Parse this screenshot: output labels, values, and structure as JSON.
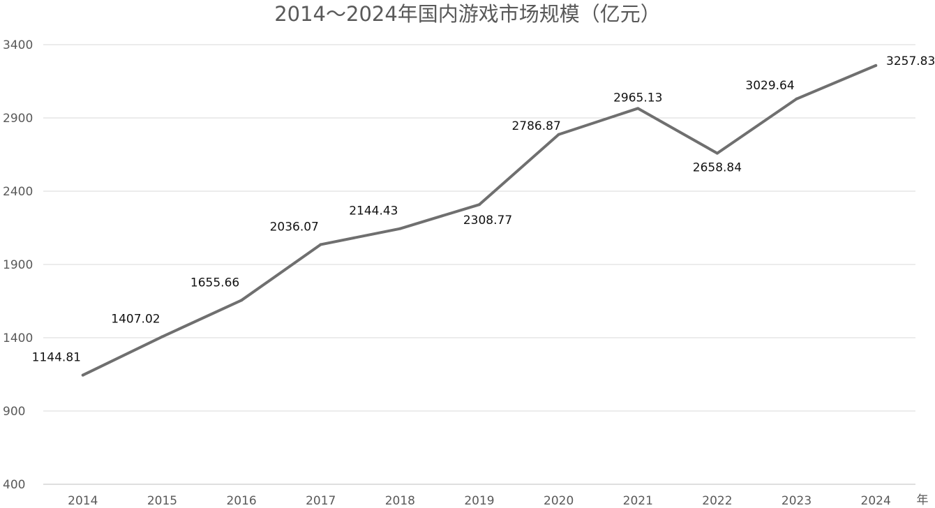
{
  "chart_data": {
    "type": "line",
    "title": "2014～2024年国内游戏市场规模（亿元）",
    "xlabel": "年",
    "ylabel": "",
    "categories": [
      "2014",
      "2015",
      "2016",
      "2017",
      "2018",
      "2019",
      "2020",
      "2021",
      "2022",
      "2023",
      "2024"
    ],
    "series": [
      {
        "values": [
          1144.81,
          1407.02,
          1655.66,
          2036.07,
          2144.43,
          2308.77,
          2786.87,
          2965.13,
          2658.84,
          3029.64,
          3257.83
        ],
        "data_labels": [
          "1144.81",
          "1407.02",
          "1655.66",
          "2036.07",
          "2144.43",
          "2308.77",
          "2786.87",
          "2965.13",
          "2658.84",
          "3029.64",
          "3257.83"
        ]
      }
    ],
    "ylim": [
      400,
      3400
    ],
    "yticks": [
      400,
      900,
      1400,
      1900,
      2400,
      2900,
      3400
    ],
    "grid": true,
    "legend": "none",
    "colors": {
      "line": "#6f6f6f",
      "grid": "#d9d9d9",
      "axis_text": "#595959",
      "label_text": "#111111"
    }
  }
}
